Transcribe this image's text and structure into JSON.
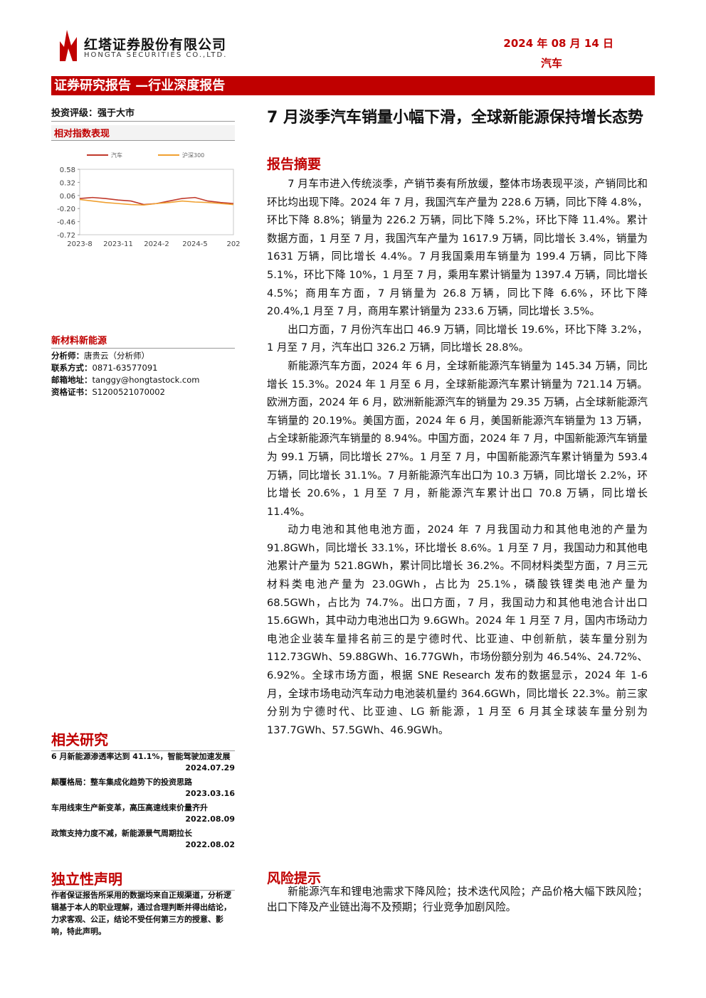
{
  "header": {
    "company": "红塔证券股份有限公司",
    "company_en": "HONGTA SECURITIES CO.,LTD.",
    "date": "2024 年 08 月 14 日",
    "sector": "汽车",
    "banner": "证券研究报告 —行业深度报告"
  },
  "sidebar": {
    "rating_label": "投资评级：",
    "rating": "强于大市",
    "chart_title": "相对指数表现",
    "industry": "新材料新能源",
    "analyst": [
      {
        "label": "分析师：",
        "value": "唐贵云（分析师）"
      },
      {
        "label": "联系方式：",
        "value": "0871-63577091"
      },
      {
        "label": "邮箱地址：",
        "value": "tanggy@hongtastock.com"
      },
      {
        "label": "资格证书：",
        "value": "S1200521070002"
      }
    ],
    "related_title": "相关研究",
    "related": [
      {
        "title": "6 月新能源渗透率达到 41.1%，智能驾驶加速发展",
        "date": "2024.07.29"
      },
      {
        "title": "颠覆格局：整车集成化趋势下的投资思路",
        "date": "2023.03.16"
      },
      {
        "title": "车用线束生产新变革，高压高速线束价量齐升",
        "date": "2022.08.09"
      },
      {
        "title": "政策支持力度不减，新能源景气周期拉长",
        "date": "2022.08.02"
      }
    ],
    "disclaimer_title": "独立性声明",
    "disclaimer": "作者保证报告所采用的数据均来自正规渠道，分析逻辑基于本人的职业理解，通过合理判断并得出结论，力求客观、公正，结论不受任何第三方的授意、影响，特此声明。"
  },
  "main": {
    "title": "7 月淡季汽车销量小幅下滑，全球新能源保持增长态势",
    "summary_title": "报告摘要",
    "paragraphs": [
      "7 月车市进入传统淡季，产销节奏有所放缓，整体市场表现平淡，产销同比和环比均出现下降。2024 年 7 月，我国汽车产量为 228.6 万辆，同比下降 4.8%，环比下降 8.8%；销量为 226.2 万辆，同比下降 5.2%，环比下降 11.4%。累计数据方面，1 月至 7 月，我国汽车产量为 1617.9 万辆，同比增长 3.4%，销量为 1631 万辆，同比增长 4.4%。7 月我国乘用车销量为 199.4 万辆，同比下降 5.1%，环比下降 10%，1 月至 7 月，乘用车累计销量为 1397.4 万辆，同比增长 4.5%；商用车方面，7 月销量为 26.8 万辆，同比下降 6.6%，环比下降 20.4%,1 月至 7 月，商用车累计销量为 233.6 万辆，同比增长 3.5%。",
      "出口方面，7 月份汽车出口 46.9 万辆，同比增长 19.6%，环比下降 3.2%，1 月至 7 月，汽车出口 326.2 万辆，同比增长 28.8%。",
      "新能源汽车方面，2024 年 6 月，全球新能源汽车销量为 145.34 万辆，同比增长 15.3%。2024 年 1 月至 6 月，全球新能源汽车累计销量为 721.14 万辆。欧洲方面，2024 年 6 月，欧洲新能源汽车的销量为 29.35 万辆，占全球新能源汽车销量的 20.19%。美国方面，2024 年 6 月，美国新能源汽车销量为 13 万辆，占全球新能源汽车销量的 8.94%。中国方面，2024 年 7 月，中国新能源汽车销量为 99.1 万辆，同比增长 27%。1 月至 7 月，中国新能源汽车累计销量为 593.4 万辆，同比增长 31.1%。7 月新能源汽车出口为 10.3 万辆，同比增长 2.2%，环比增长 20.6%，1 月至 7 月，新能源汽车累计出口 70.8 万辆，同比增长 11.4%。",
      "动力电池和其他电池方面，2024 年 7 月我国动力和其他电池的产量为 91.8GWh，同比增长 33.1%，环比增长 8.6%。1 月至 7 月，我国动力和其他电池累计产量为 521.8GWh，累计同比增长 36.2%。不同材料类型方面，7 月三元材料类电池产量为 23.0GWh，占比为 25.1%，磷酸铁锂类电池产量为 68.5GWh，占比为 74.7%。出口方面，7 月，我国动力和其他电池合计出口 15.6GWh，其中动力电池出口为 9.6GWh。2024 年 1 月至 7 月，国内市场动力电池企业装车量排名前三的是宁德时代、比亚迪、中创新航，装车量分别为 112.73GWh、59.88GWh、16.77GWh，市场份额分别为 46.54%、24.72%、6.92%。全球市场方面，根据 SNE Research 发布的数据显示，2024 年 1-6 月，全球市场电动汽车动力电池装机量约 364.6GWh，同比增长 22.3%。前三家分别为宁德时代、比亚迪、LG 新能源，1 月至 6 月其全球装车量分别为 137.7GWh、57.5GWh、46.9GWh。"
    ],
    "risk_title": "风险提示",
    "risk": "新能源汽车和锂电池需求下降风险；技术迭代风险；产品价格大幅下跌风险；出口下降及产业链出海不及预期；行业竞争加剧风险。"
  },
  "chart_data": {
    "type": "line",
    "categories": [
      "2023-8",
      null,
      null,
      "2023-11",
      null,
      null,
      "2024-2",
      null,
      null,
      "2024-5",
      null,
      null,
      "202"
    ],
    "series": [
      {
        "name": "汽车",
        "color": "#c0392b",
        "values": [
          0.0,
          0.02,
          0.0,
          -0.03,
          -0.05,
          -0.12,
          -0.1,
          -0.05,
          0.0,
          0.02,
          -0.05,
          -0.08,
          -0.1
        ]
      },
      {
        "name": "沪深300",
        "color": "#f0a030",
        "values": [
          -0.02,
          -0.05,
          -0.08,
          -0.1,
          -0.12,
          -0.13,
          -0.1,
          -0.08,
          -0.05,
          -0.07,
          -0.08,
          -0.1,
          -0.12
        ]
      }
    ],
    "ylim": [
      -0.72,
      0.58
    ],
    "yticks": [
      0.58,
      0.32,
      0.06,
      {
        "value": -0.2,
        "label": "-0.20"
      },
      -0.46,
      -0.72
    ],
    "grid": false
  }
}
